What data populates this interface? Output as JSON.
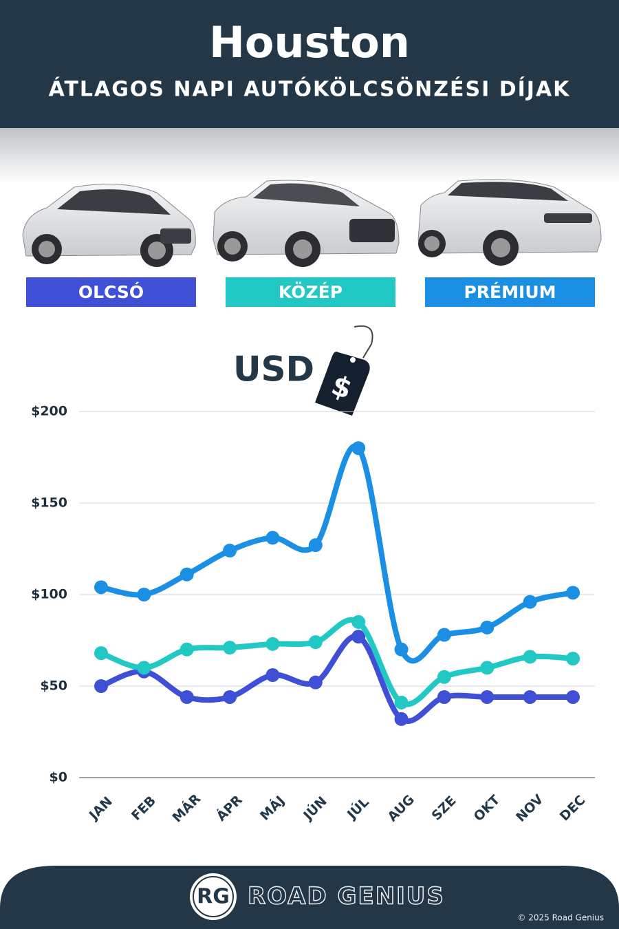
{
  "chart_data": {
    "type": "line",
    "title": "Houston",
    "subtitle": "ÁTLAGOS NAPI AUTÓKÖLCSÖNZÉSI DÍJAK",
    "unit_label": "USD",
    "unit_symbol": "$",
    "categories": [
      "JAN",
      "FEB",
      "MÁR",
      "ÁPR",
      "MÁJ",
      "JÚN",
      "JÚL",
      "AUG",
      "SZE",
      "OKT",
      "NOV",
      "DEC"
    ],
    "series": [
      {
        "name": "OLCSÓ",
        "color": "#3f4fd6",
        "values": [
          50,
          58,
          44,
          44,
          56,
          52,
          77,
          32,
          44,
          44,
          44,
          44
        ]
      },
      {
        "name": "KÖZÉP",
        "color": "#22c9c4",
        "values": [
          68,
          60,
          70,
          71,
          73,
          74,
          85,
          41,
          55,
          60,
          66,
          65
        ]
      },
      {
        "name": "PRÉMIUM",
        "color": "#1a8fe3",
        "values": [
          104,
          100,
          111,
          124,
          131,
          127,
          180,
          70,
          78,
          82,
          96,
          101
        ]
      }
    ],
    "ylim": [
      0,
      200
    ],
    "yticks": [
      {
        "value": 0,
        "label": "$0"
      },
      {
        "value": 50,
        "label": "$50"
      },
      {
        "value": 100,
        "label": "$100"
      },
      {
        "value": 150,
        "label": "$150"
      },
      {
        "value": 200,
        "label": "$200"
      }
    ],
    "grid": true
  },
  "footer": {
    "logo": "RG",
    "brand": "ROAD GENIUS",
    "copyright": "© 2025 Road Genius"
  }
}
